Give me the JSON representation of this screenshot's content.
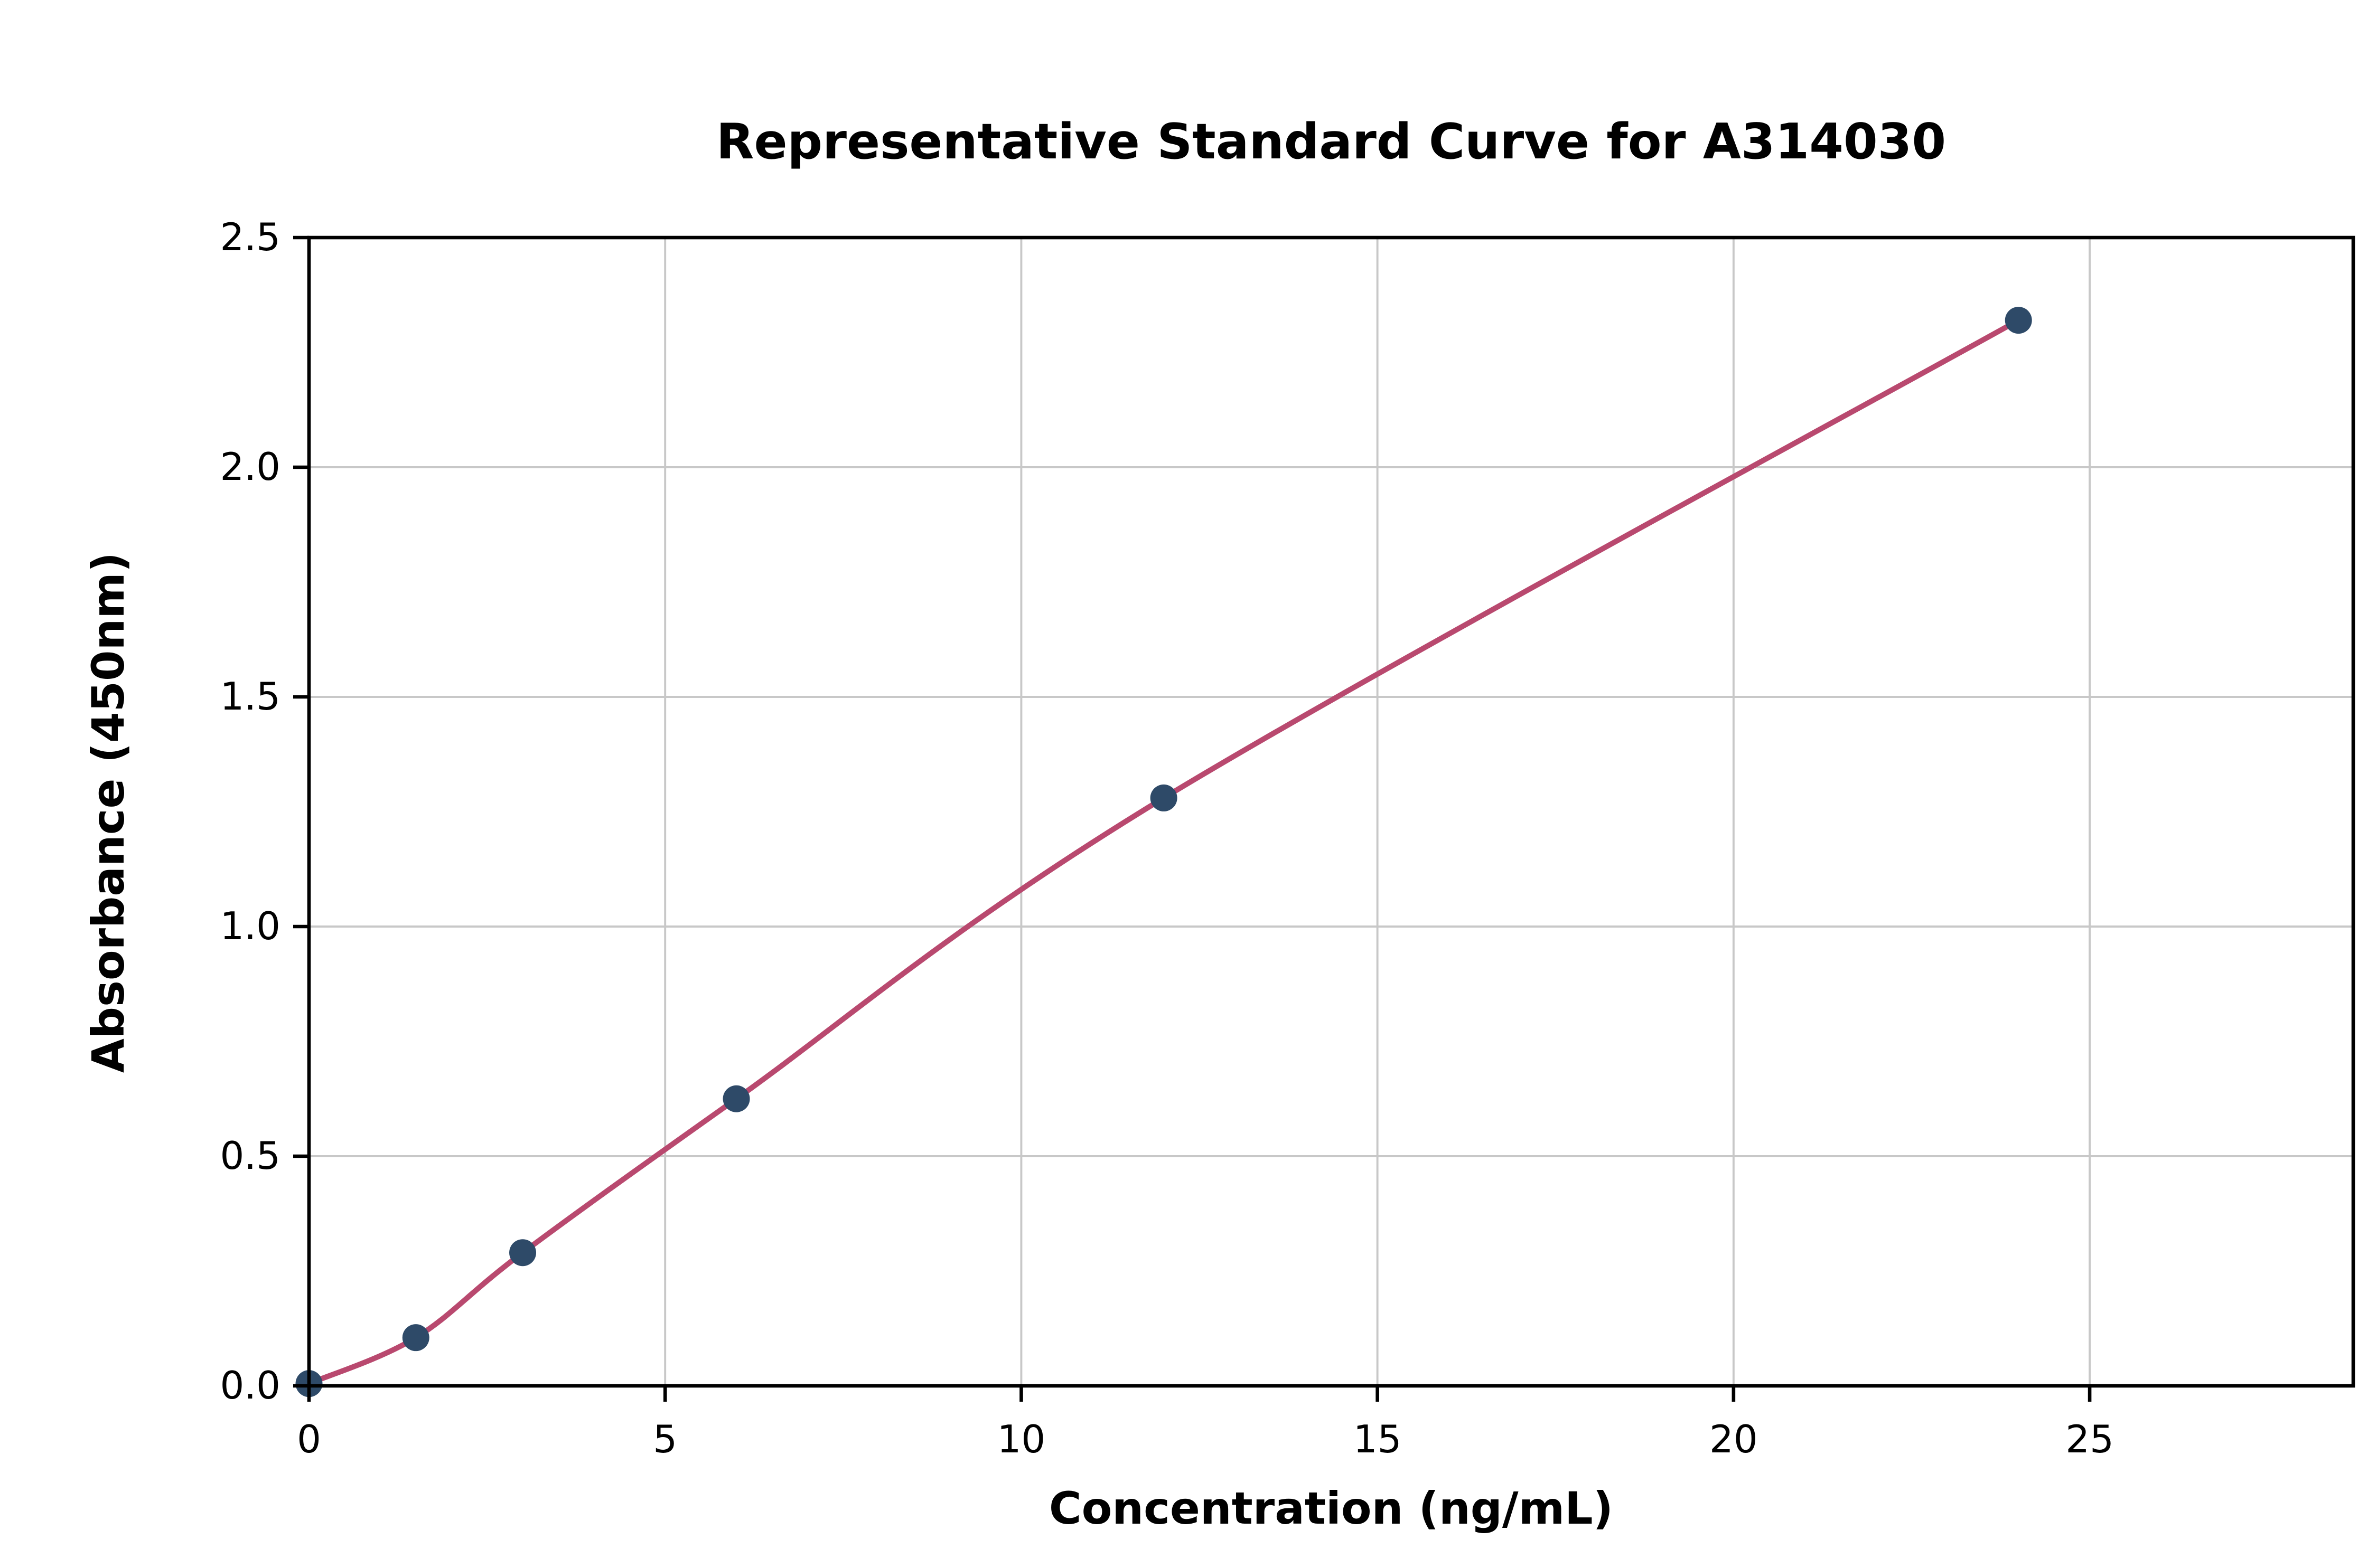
{
  "chart_data": {
    "type": "scatter",
    "title": "Representative Standard Curve for A314030",
    "xlabel": "Concentration (ng/mL)",
    "ylabel": "Absorbance (450nm)",
    "x": [
      0,
      1.5,
      3,
      6,
      12,
      24
    ],
    "y": [
      0.005,
      0.105,
      0.29,
      0.625,
      1.28,
      2.32
    ],
    "curve": "smooth fit through points",
    "xlim": [
      0,
      28.7
    ],
    "ylim": [
      0,
      2.5
    ],
    "xticks": {
      "values": [
        0,
        5,
        10,
        15,
        20,
        25
      ],
      "labels": [
        "0",
        "5",
        "10",
        "15",
        "20",
        "25"
      ]
    },
    "yticks": {
      "values": [
        0,
        0.5,
        1.0,
        1.5,
        2.0,
        2.5
      ],
      "labels": [
        "0.0",
        "0.5",
        "1.0",
        "1.5",
        "2.0",
        "2.5"
      ]
    },
    "grid": true,
    "legend": null,
    "colors": {
      "line": "#b9496f",
      "marker": "#2e4a68",
      "grid": "#c8c8c8",
      "axis": "#000000",
      "background": "#ffffff"
    }
  }
}
